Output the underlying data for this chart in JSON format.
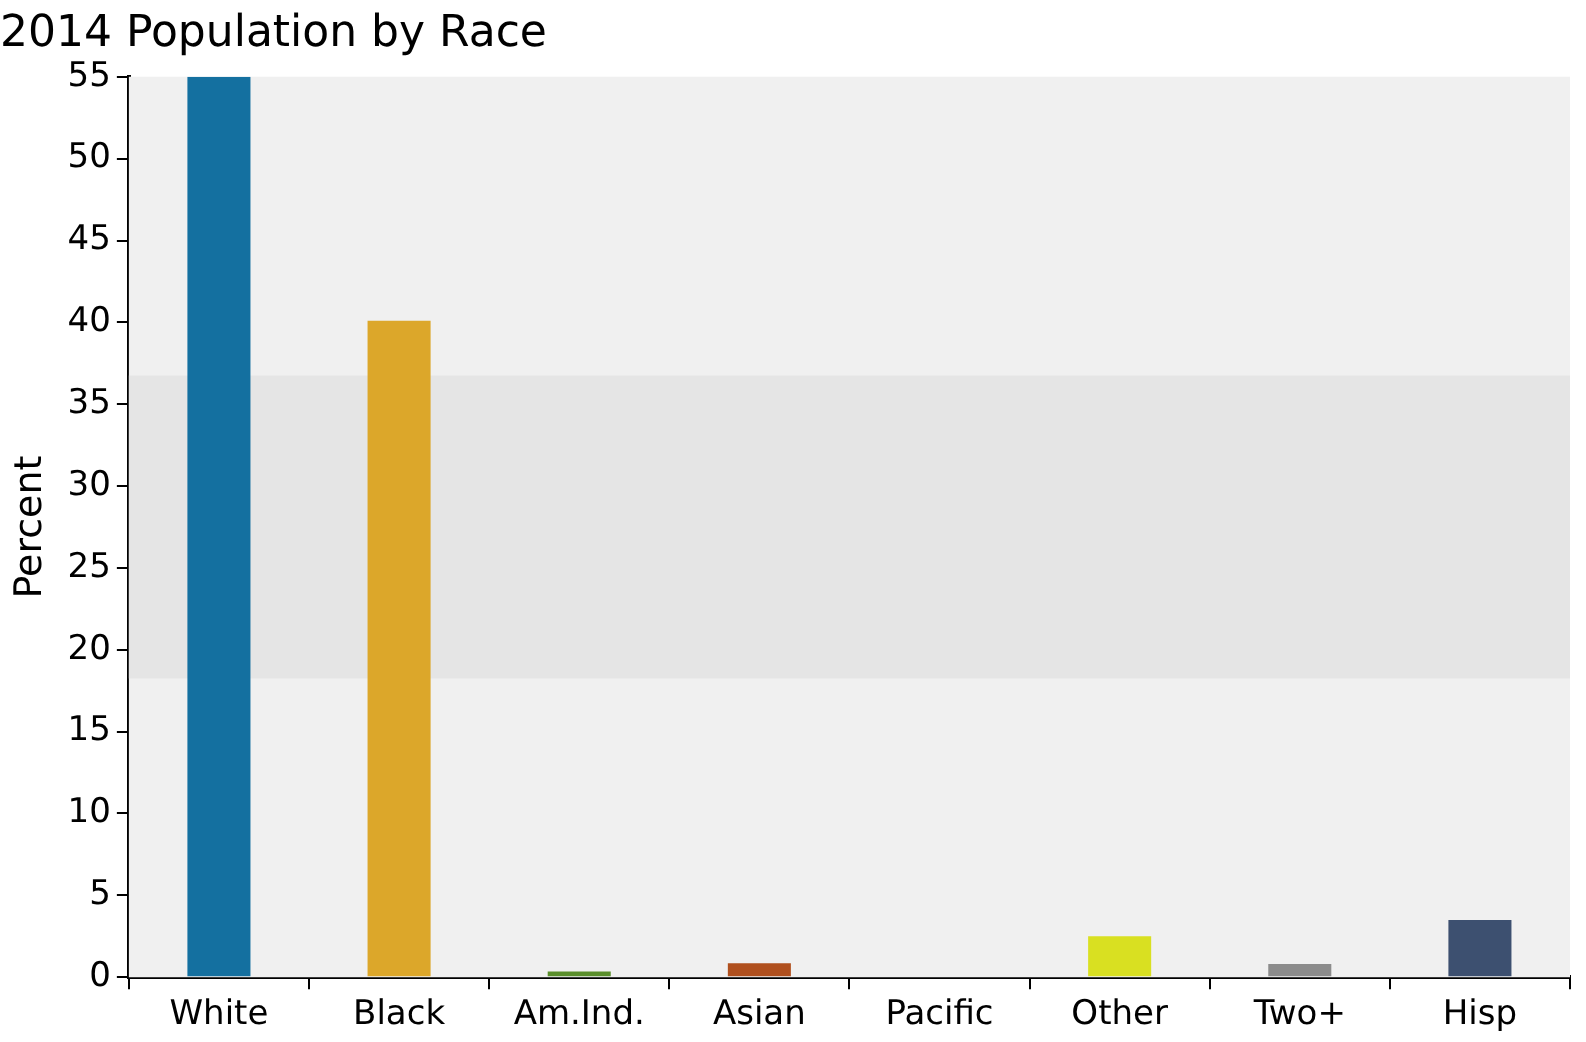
{
  "chart_data": {
    "type": "bar",
    "title": "2014 Population by Race",
    "ylabel": "Percent",
    "categories": [
      "White",
      "Black",
      "Am.Ind.",
      "Asian",
      "Pacific",
      "Other",
      "Two+",
      "Hisp"
    ],
    "values": [
      55,
      40.1,
      0.35,
      0.85,
      0,
      2.5,
      0.8,
      3.5
    ],
    "colors": [
      "#1470a0",
      "#dca72a",
      "#5a8f2b",
      "#b0501e",
      "#7f7f7f",
      "#d9e021",
      "#8c8c8c",
      "#3d5070"
    ],
    "ylim": [
      0,
      55
    ],
    "yticks": [
      0,
      5,
      10,
      15,
      20,
      25,
      30,
      35,
      40,
      45,
      50,
      55
    ],
    "bands": [
      {
        "axis": "y",
        "from": 18.25,
        "to": 36.75,
        "color": "#e5e5e5"
      }
    ],
    "grid": false,
    "legend": false
  }
}
